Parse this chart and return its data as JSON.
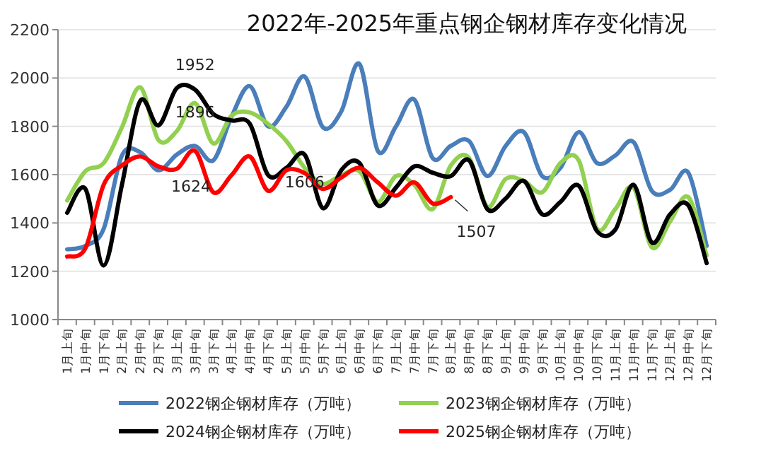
{
  "chart_data": {
    "type": "line",
    "title": "2022年-2025年重点钢企钢材库存变化情况",
    "categories": [
      "1月上旬",
      "1月中旬",
      "1月下旬",
      "2月上旬",
      "2月中旬",
      "2月下旬",
      "3月上旬",
      "3月中旬",
      "3月下旬",
      "4月上旬",
      "4月中旬",
      "4月下旬",
      "5月上旬",
      "5月中旬",
      "5月下旬",
      "6月上旬",
      "6月中旬",
      "6月下旬",
      "7月上旬",
      "7月中旬",
      "7月下旬",
      "8月上旬",
      "8月中旬",
      "8月下旬",
      "9月上旬",
      "9月中旬",
      "9月下旬",
      "10月上旬",
      "10月中旬",
      "10月下旬",
      "11月上旬",
      "11月中旬",
      "11月下旬",
      "12月上旬",
      "12月中旬",
      "12月下旬"
    ],
    "series": [
      {
        "name": "2022钢企钢材库存（万吨）",
        "color": "#4a7ebb",
        "values": [
          1291,
          1305,
          1376,
          1679,
          1693,
          1618,
          1683,
          1719,
          1659,
          1840,
          1966,
          1800,
          1881,
          2006,
          1796,
          1861,
          2058,
          1699,
          1800,
          1911,
          1669,
          1719,
          1739,
          1594,
          1719,
          1776,
          1594,
          1628,
          1776,
          1648,
          1679,
          1735,
          1533,
          1537,
          1608,
          1305
        ]
      },
      {
        "name": "2023钢企钢材库存（万吨）",
        "color": "#92d050",
        "values": [
          1493,
          1614,
          1648,
          1796,
          1962,
          1743,
          1780,
          1896,
          1729,
          1844,
          1857,
          1810,
          1739,
          1628,
          1562,
          1598,
          1614,
          1487,
          1594,
          1558,
          1457,
          1638,
          1669,
          1467,
          1582,
          1574,
          1527,
          1648,
          1659,
          1376,
          1457,
          1547,
          1299,
          1406,
          1507,
          1265
        ]
      },
      {
        "name": "2024钢企钢材库存（万吨）",
        "color": "#000000",
        "values": [
          1442,
          1541,
          1224,
          1558,
          1905,
          1804,
          1958,
          1952,
          1851,
          1824,
          1810,
          1598,
          1628,
          1683,
          1461,
          1618,
          1648,
          1473,
          1547,
          1634,
          1608,
          1594,
          1659,
          1457,
          1501,
          1574,
          1436,
          1487,
          1554,
          1366,
          1372,
          1558,
          1319,
          1436,
          1473,
          1234
        ]
      },
      {
        "name": "2025钢企钢材库存（万吨）",
        "color": "#ff0000",
        "values": [
          1261,
          1295,
          1558,
          1638,
          1675,
          1634,
          1624,
          1699,
          1527,
          1598,
          1675,
          1533,
          1618,
          1606,
          1541,
          1588,
          1628,
          1568,
          1513,
          1568,
          1481,
          1507,
          null,
          null,
          null,
          null,
          null,
          null,
          null,
          null,
          null,
          null,
          null,
          null,
          null,
          null
        ]
      }
    ],
    "ylim": [
      1000,
      2200
    ],
    "yticks": [
      1000,
      1200,
      1400,
      1600,
      1800,
      2000,
      2200
    ],
    "grid": "y",
    "legend": "bottom",
    "annotations": [
      {
        "text": "1952",
        "x": "3月中旬",
        "y": 1952
      },
      {
        "text": "1896",
        "x": "3月中旬",
        "y": 1896
      },
      {
        "text": "1624",
        "x": "3月上旬",
        "y": 1624
      },
      {
        "text": "1606",
        "x": "5月中旬",
        "y": 1606
      },
      {
        "text": "1507",
        "x": "8月上旬",
        "y": 1507
      }
    ]
  }
}
